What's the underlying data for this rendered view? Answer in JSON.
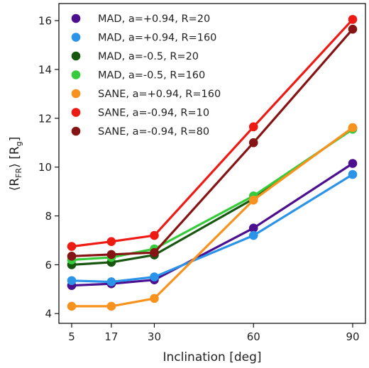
{
  "chart_data": {
    "type": "line",
    "xlabel": "Inclination [deg]",
    "ylabel": "⟨R_FR⟩ [R_g]",
    "ylabel_parts": {
      "open": "⟨R",
      "sub1": "FR",
      "mid": "⟩ [R",
      "sub2": "g",
      "close": "]"
    },
    "x": [
      5,
      17,
      30,
      60,
      90
    ],
    "x_tick_labels": [
      "5",
      "17",
      "30",
      "60",
      "90"
    ],
    "y_ticks": [
      4,
      6,
      8,
      10,
      12,
      14,
      16
    ],
    "y_tick_labels": [
      "4",
      "6",
      "8",
      "10",
      "12",
      "14",
      "16"
    ],
    "ylim": [
      3.6,
      16.7
    ],
    "grid": false,
    "legend_position": "top-left",
    "series": [
      {
        "name": "MAD, a=+0.94, R=20",
        "color": "#4b0f8f",
        "values": [
          5.15,
          5.22,
          5.38,
          7.5,
          10.15
        ]
      },
      {
        "name": "MAD, a=+0.94, R=160",
        "color": "#2b93e8",
        "values": [
          5.35,
          5.3,
          5.5,
          7.2,
          9.7
        ]
      },
      {
        "name": "MAD, a=-0.5, R=20",
        "color": "#17570f",
        "values": [
          6.0,
          6.1,
          6.4,
          8.7,
          11.6
        ]
      },
      {
        "name": "MAD, a=-0.5, R=160",
        "color": "#35cc3b",
        "values": [
          6.2,
          6.3,
          6.65,
          8.82,
          11.55
        ]
      },
      {
        "name": "SANE, a=+0.94, R=160",
        "color": "#f7921e",
        "values": [
          4.3,
          4.3,
          4.62,
          8.65,
          11.62
        ]
      },
      {
        "name": "SANE, a=-0.94, R=10",
        "color": "#ee1a14",
        "values": [
          6.75,
          6.95,
          7.2,
          11.65,
          16.05
        ]
      },
      {
        "name": "SANE, a=-0.94, R=80",
        "color": "#861414",
        "values": [
          6.35,
          6.42,
          6.5,
          11.0,
          15.65
        ]
      }
    ]
  }
}
